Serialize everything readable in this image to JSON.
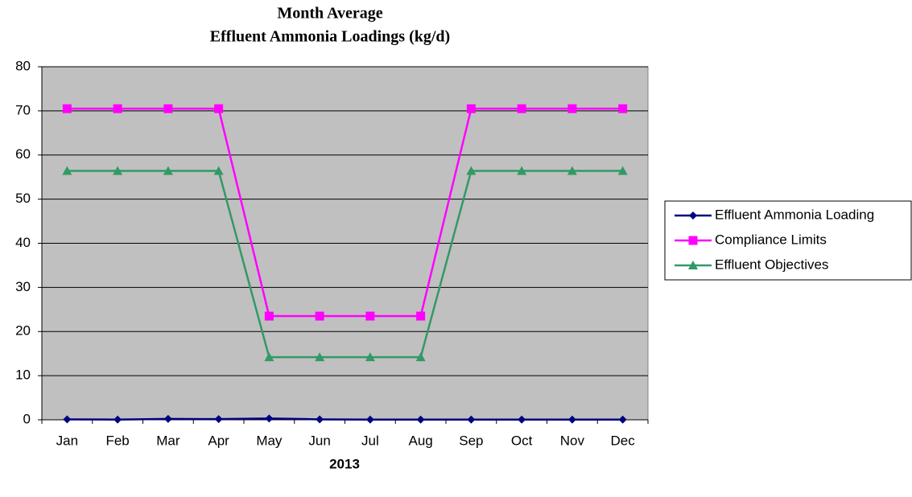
{
  "chart_data": {
    "type": "line",
    "title": [
      "Month Average",
      "Effluent Ammonia Loadings (kg/d)"
    ],
    "x_label": "2013",
    "categories": [
      "Jan",
      "Feb",
      "Mar",
      "Apr",
      "May",
      "Jun",
      "Jul",
      "Aug",
      "Sep",
      "Oct",
      "Nov",
      "Dec"
    ],
    "series": [
      {
        "name": "Effluent Ammonia Loading",
        "color": "#000080",
        "marker": "diamond",
        "values": [
          0.1,
          0.05,
          0.2,
          0.15,
          0.3,
          0.1,
          0.05,
          0.05,
          0.05,
          0.05,
          0.05,
          0.05
        ]
      },
      {
        "name": "Compliance Limits",
        "color": "#FF00FF",
        "marker": "square",
        "values": [
          70.5,
          70.5,
          70.5,
          70.5,
          23.5,
          23.5,
          23.5,
          23.5,
          70.5,
          70.5,
          70.5,
          70.5
        ]
      },
      {
        "name": "Effluent Objectives",
        "color": "#339966",
        "marker": "triangle",
        "values": [
          56.4,
          56.4,
          56.4,
          56.4,
          14.2,
          14.2,
          14.2,
          14.2,
          56.4,
          56.4,
          56.4,
          56.4
        ]
      }
    ],
    "ylim": [
      0,
      80
    ],
    "yticks": [
      0,
      10,
      20,
      30,
      40,
      50,
      60,
      70,
      80
    ],
    "grid": true,
    "legend": "right"
  }
}
